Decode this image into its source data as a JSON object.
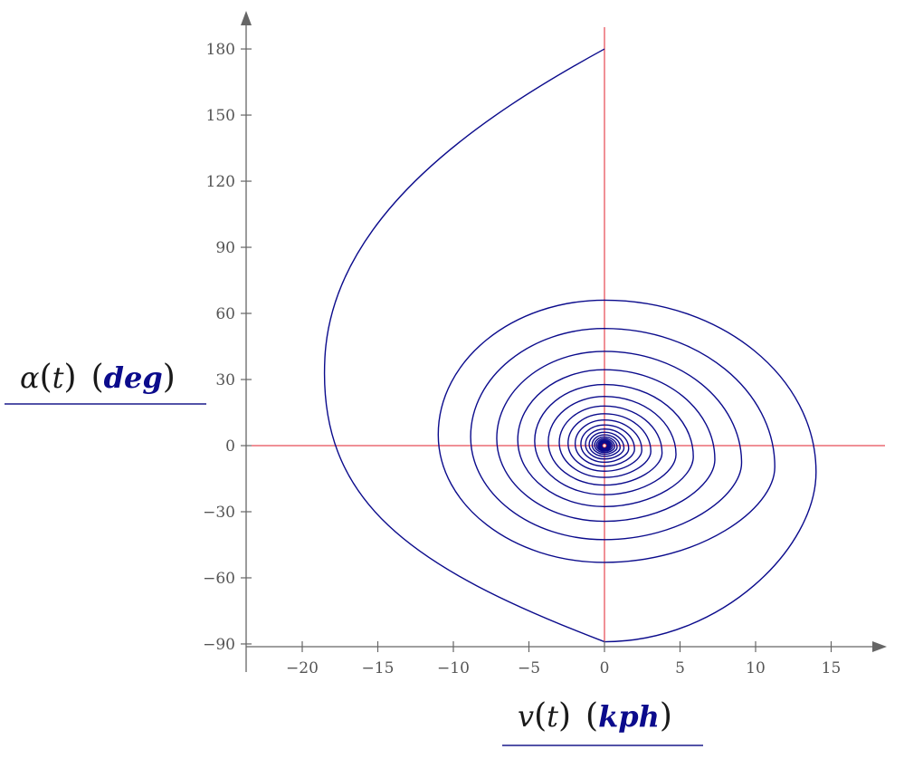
{
  "chart_data": {
    "type": "line",
    "plot_kind": "parametric phase portrait (damped spiral)",
    "xlabel": {
      "expression": "v(t)",
      "function": "v",
      "variable": "t",
      "unit": "kph"
    },
    "ylabel": {
      "expression": "α(t)",
      "function": "α",
      "variable": "t",
      "unit": "deg"
    },
    "xlim": [
      -23.5,
      18.5
    ],
    "ylim": [
      -90,
      187
    ],
    "x_ticks": [
      -20,
      -15,
      -10,
      -5,
      0,
      5,
      10,
      15
    ],
    "y_ticks": [
      -90,
      -60,
      -30,
      0,
      30,
      60,
      90,
      120,
      150,
      180
    ],
    "x_tick_labels": [
      "−20",
      "−15",
      "−10",
      "−5",
      "0",
      "5",
      "10",
      "15"
    ],
    "y_tick_labels": [
      "−90",
      "−60",
      "−30",
      "0",
      "30",
      "60",
      "90",
      "120",
      "150",
      "180"
    ],
    "reference_lines": {
      "x": 0,
      "y": 0
    },
    "grid": false,
    "legend": "none",
    "series": [
      {
        "start_point": [
          0,
          180
        ],
        "end_point": [
          0,
          0
        ],
        "approximate_turning_points": [
          {
            "x": -18.0,
            "y": 22,
            "note": "leftmost extent"
          },
          {
            "x": 0,
            "y": -89,
            "note": "bottom crossing"
          },
          {
            "x": 14.0,
            "y": -12,
            "note": "rightmost extent"
          },
          {
            "x": 0,
            "y": 66,
            "note": "top crossing"
          },
          {
            "x": -11.0,
            "y": 5
          },
          {
            "x": 0,
            "y": -53
          },
          {
            "x": 9.3,
            "y": -3
          },
          {
            "x": 0,
            "y": 45
          },
          {
            "x": -8.0,
            "y": 3
          },
          {
            "x": 0,
            "y": -39
          },
          {
            "x": 7.0,
            "y": -2
          },
          {
            "x": 0,
            "y": 34
          }
        ],
        "behavior": "decaying oscillation spiralling clockwise into the origin"
      }
    ],
    "colors": {
      "curve": "#0b0b8c",
      "reference_lines": "#e0202c",
      "axes": "#666666",
      "tick_labels": "#555555",
      "units": "#0b0b8c",
      "label_underline": "#1a1a8c"
    }
  }
}
